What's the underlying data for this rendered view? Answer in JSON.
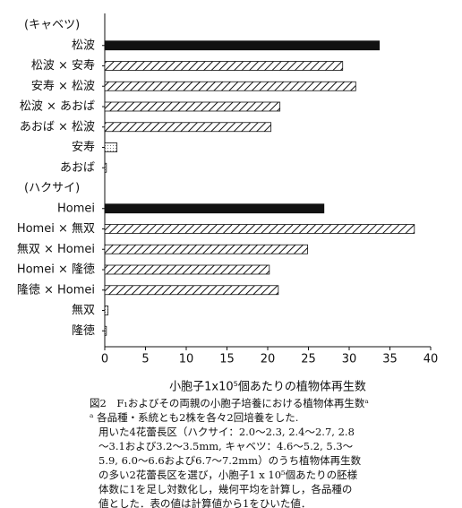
{
  "chart_data": {
    "type": "hbar",
    "categories": [
      "(キャベツ)",
      "松波",
      "松波 × 安寿",
      "安寿 × 松波",
      "松波 × あおば",
      "あおば × 松波",
      "安寿",
      "あおば",
      "(ハクサイ)",
      "Homei",
      "Homei × 無双",
      "無双 × Homei",
      "Homei × 隆徳",
      "隆徳 × Homei",
      "無双",
      "隆徳"
    ],
    "values": [
      null,
      33.7,
      29.2,
      30.8,
      21.5,
      20.4,
      1.5,
      0.2,
      null,
      26.9,
      38.0,
      24.9,
      20.2,
      21.3,
      0.4,
      0.2
    ],
    "bar_fills": [
      null,
      "solid",
      "hatch",
      "hatch",
      "hatch",
      "hatch",
      "dots",
      "dots",
      null,
      "solid",
      "hatch",
      "hatch",
      "hatch",
      "hatch",
      "dots",
      "dots"
    ],
    "xlim": [
      0,
      40
    ],
    "xticks": [
      0,
      5,
      10,
      15,
      20,
      25,
      30,
      35,
      40
    ],
    "x_label": "小胞子1x10⁵個あたりの植物体再生数",
    "caption": [
      "図2　F₁およびその両親の小胞子培養における植物体再生数ᵃ",
      "ᵃ 各品種・系統とも2株を各々2回培養をした.",
      "用いた4花蕾長区（ハクサイ：2.0～2.3, 2.4～2.7, 2.8",
      "～3.1および3.2～3.5mm, キャベツ：4.6～5.2, 5.3～",
      "5.9, 6.0～6.6および6.7～7.2mm）のうち植物体再生数",
      "の多い2花蕾長区を選び，小胞子1 x 10⁵個あたりの胚様",
      "体数に1を足し対数化し，幾何平均を計算し，各品種の",
      "値とした．表の値は計算値から1をひいた値．"
    ]
  }
}
